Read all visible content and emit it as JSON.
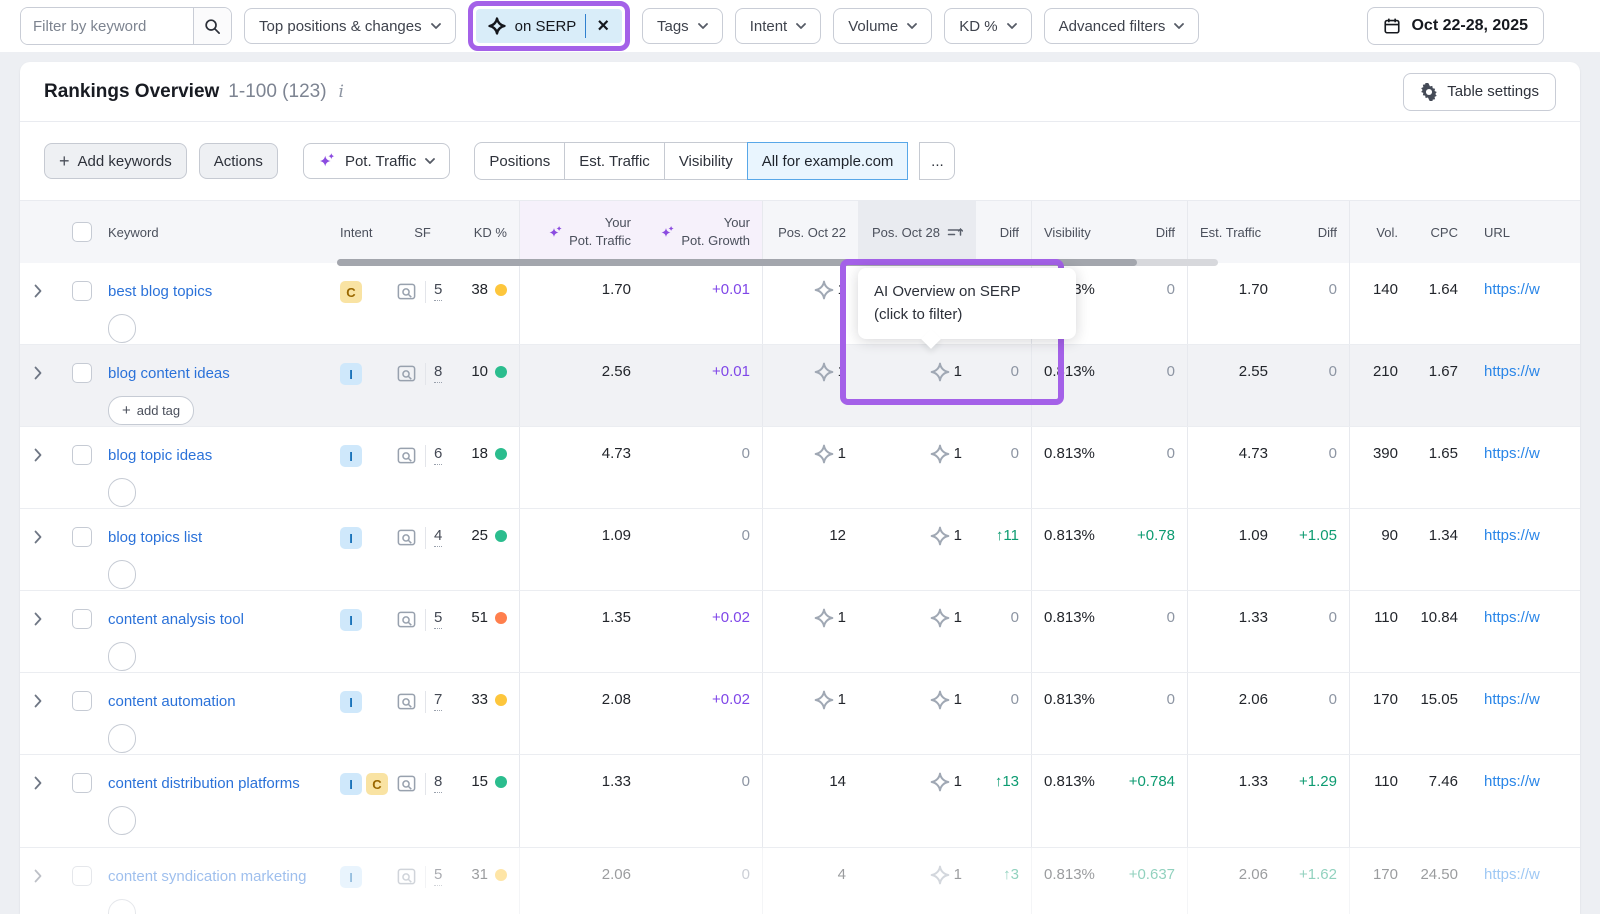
{
  "filters": {
    "search_placeholder": "Filter by keyword",
    "dropdown_main": "Top positions & changes",
    "serp_chip": {
      "label": "on SERP"
    },
    "dropdowns": [
      "Tags",
      "Intent",
      "Volume",
      "KD %",
      "Advanced filters"
    ],
    "date_range": "Oct 22-28, 2025"
  },
  "header": {
    "title": "Rankings Overview",
    "range": "1-100 (123)",
    "table_settings": "Table settings"
  },
  "toolbar": {
    "add_keywords": "Add keywords",
    "actions": "Actions",
    "pot_traffic": "Pot. Traffic",
    "tabs": [
      "Positions",
      "Est. Traffic",
      "Visibility",
      "All for example.com"
    ],
    "active_tab": 3,
    "overflow": "..."
  },
  "tooltip": {
    "line1": "AI Overview on SERP",
    "line2": "(click to filter)"
  },
  "table": {
    "headers": {
      "keyword": "Keyword",
      "intent": "Intent",
      "sf": "SF",
      "kd": "KD %",
      "pot_traffic_1": "Your",
      "pot_traffic_2": "Pot. Traffic",
      "pot_growth_1": "Your",
      "pot_growth_2": "Pot. Growth",
      "pos_oct22": "Pos. Oct 22",
      "pos_oct28": "Pos. Oct 28",
      "diff1": "Diff",
      "visibility": "Visibility",
      "diff2": "Diff",
      "est_traffic": "Est. Traffic",
      "diff3": "Diff",
      "vol": "Vol.",
      "cpc": "CPC",
      "url": "URL"
    },
    "rows": [
      {
        "keyword": "best blog topics",
        "intents": [
          "C"
        ],
        "sf": "5",
        "kd": "38",
        "kd_level": "yellow",
        "pot_traffic": "1.70",
        "pot_growth": "+0.01",
        "pos_oct22": {
          "ai": true,
          "value": "1"
        },
        "pos_oct28": {
          "ai": true,
          "value": "1"
        },
        "pos_diff": "0",
        "visibility": "0.813%",
        "visibility_diff": "0",
        "est_traffic": "1.70",
        "est_traffic_diff": "0",
        "volume": "140",
        "cpc": "1.64",
        "url": "https://w"
      },
      {
        "keyword": "blog content ideas",
        "add_tag": "add tag",
        "hovered": true,
        "intents": [
          "I"
        ],
        "sf": "8",
        "kd": "10",
        "kd_level": "green",
        "pot_traffic": "2.56",
        "pot_growth": "+0.01",
        "pos_oct22": {
          "ai": true,
          "value": "1"
        },
        "pos_oct28": {
          "ai": true,
          "value": "1"
        },
        "pos_diff": "0",
        "visibility": "0.813%",
        "visibility_diff": "0",
        "est_traffic": "2.55",
        "est_traffic_diff": "0",
        "volume": "210",
        "cpc": "1.67",
        "url": "https://w"
      },
      {
        "keyword": "blog topic ideas",
        "intents": [
          "I"
        ],
        "sf": "6",
        "kd": "18",
        "kd_level": "green",
        "pot_traffic": "4.73",
        "pot_growth": "0",
        "pos_oct22": {
          "ai": true,
          "value": "1"
        },
        "pos_oct28": {
          "ai": true,
          "value": "1"
        },
        "pos_diff": "0",
        "visibility": "0.813%",
        "visibility_diff": "0",
        "est_traffic": "4.73",
        "est_traffic_diff": "0",
        "volume": "390",
        "cpc": "1.65",
        "url": "https://w"
      },
      {
        "keyword": "blog topics list",
        "intents": [
          "I"
        ],
        "sf": "4",
        "kd": "25",
        "kd_level": "green",
        "pot_traffic": "1.09",
        "pot_growth": "0",
        "pos_oct22": {
          "ai": false,
          "value": "12"
        },
        "pos_oct28": {
          "ai": true,
          "value": "1"
        },
        "pos_diff": "↑11",
        "visibility": "0.813%",
        "visibility_diff": "+0.78",
        "est_traffic": "1.09",
        "est_traffic_diff": "+1.05",
        "volume": "90",
        "cpc": "1.34",
        "url": "https://w"
      },
      {
        "keyword": "content analysis tool",
        "intents": [
          "I"
        ],
        "sf": "5",
        "kd": "51",
        "kd_level": "orange",
        "pot_traffic": "1.35",
        "pot_growth": "+0.02",
        "pos_oct22": {
          "ai": true,
          "value": "1"
        },
        "pos_oct28": {
          "ai": true,
          "value": "1"
        },
        "pos_diff": "0",
        "visibility": "0.813%",
        "visibility_diff": "0",
        "est_traffic": "1.33",
        "est_traffic_diff": "0",
        "volume": "110",
        "cpc": "10.84",
        "url": "https://w"
      },
      {
        "keyword": "content automation",
        "intents": [
          "I"
        ],
        "sf": "7",
        "kd": "33",
        "kd_level": "yellow",
        "pot_traffic": "2.08",
        "pot_growth": "+0.02",
        "pos_oct22": {
          "ai": true,
          "value": "1"
        },
        "pos_oct28": {
          "ai": true,
          "value": "1"
        },
        "pos_diff": "0",
        "visibility": "0.813%",
        "visibility_diff": "0",
        "est_traffic": "2.06",
        "est_traffic_diff": "0",
        "volume": "170",
        "cpc": "15.05",
        "url": "https://w"
      },
      {
        "keyword": "content distribution platforms",
        "tall": true,
        "intents": [
          "I",
          "C"
        ],
        "sf": "8",
        "kd": "15",
        "kd_level": "green",
        "pot_traffic": "1.33",
        "pot_growth": "0",
        "pos_oct22": {
          "ai": false,
          "value": "14"
        },
        "pos_oct28": {
          "ai": true,
          "value": "1"
        },
        "pos_diff": "↑13",
        "visibility": "0.813%",
        "visibility_diff": "+0.784",
        "est_traffic": "1.33",
        "est_traffic_diff": "+1.29",
        "volume": "110",
        "cpc": "7.46",
        "url": "https://w"
      },
      {
        "keyword": "content syndication marketing",
        "faded": true,
        "intents": [
          "I"
        ],
        "sf": "5",
        "kd": "31",
        "kd_level": "yellow",
        "pot_traffic": "2.06",
        "pot_growth": "0",
        "pos_oct22": {
          "ai": false,
          "value": "4"
        },
        "pos_oct28": {
          "ai": true,
          "value": "1"
        },
        "pos_diff": "↑3",
        "visibility": "0.813%",
        "visibility_diff": "+0.637",
        "est_traffic": "2.06",
        "est_traffic_diff": "+1.62",
        "volume": "170",
        "cpc": "24.50",
        "url": "https://w"
      }
    ]
  },
  "colors": {
    "highlight_purple": "#a461e8",
    "chip_bg": "#d9edf9",
    "active_tab_bg": "#e9f5fe",
    "active_tab_border": "#58a7e8",
    "link_blue": "#2b72d9",
    "url_blue": "#2a86e8",
    "positive_green": "#0d9b71",
    "growth_purple": "#7f46e8",
    "kd_green": "#2bbd8e",
    "kd_yellow": "#fdc63c",
    "kd_orange": "#ff7f4d",
    "intent_c_bg": "#f9e3a3",
    "intent_c_text": "#9a6700",
    "intent_i_bg": "#cfe8fb",
    "intent_i_text": "#1a73ba"
  }
}
